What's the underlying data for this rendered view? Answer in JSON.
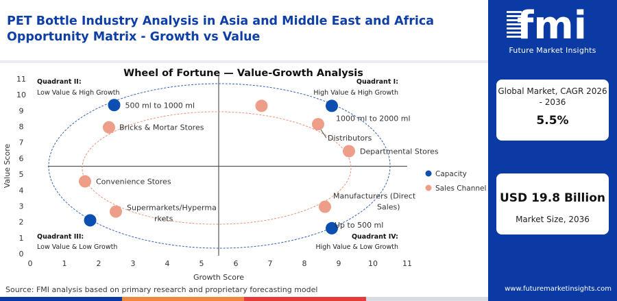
{
  "header": {
    "title": "PET Bottle Industry Analysis in Asia and Middle East and Africa Opportunity Matrix - Growth vs Value"
  },
  "source": "Source: FMI analysis based on primary research and proprietary forecasting model",
  "sidebar": {
    "logo_text": "fmi",
    "logo_sub": "Future Market Insights",
    "cagr_label": "Global Market, CAGR 2026 - 2036",
    "cagr_value": "5.5%",
    "size_value": "USD 19.8 Billion",
    "size_label": "Market Size, 2036",
    "site": "www.futuremarketinsights.com"
  },
  "colors": {
    "brand_blue": "#0b3aa4",
    "title_blue": "#0d3fa6",
    "capacity": "#0c4fb0",
    "sales_channel": "#ee9e88",
    "outer_ellipse": "#2f62b8",
    "inner_ellipse": "#e8927a",
    "bottom_bar": [
      "#0b3aa4",
      "#f0883e",
      "#e23c3c",
      "#d9dde3"
    ]
  },
  "chart_data": {
    "type": "scatter",
    "title": "Wheel of Fortune — Value-Growth Analysis",
    "xlabel": "Growth Score",
    "ylabel": "Value Score",
    "xlim": [
      0,
      11
    ],
    "ylim": [
      0,
      11
    ],
    "xticks": [
      0,
      1,
      2,
      3,
      4,
      5,
      6,
      7,
      8,
      9,
      10,
      11
    ],
    "yticks": [
      0,
      1,
      2,
      3,
      4,
      5,
      6,
      7,
      8,
      9,
      10,
      11
    ],
    "quadrant_dividers": {
      "x": 5.5,
      "y": 5.5
    },
    "quadrants": [
      {
        "title": "Quadrant II:",
        "subtitle": "Low Value & High Growth",
        "position": "top-left"
      },
      {
        "title": "Quadrant I:",
        "subtitle": "High Value & High Growth",
        "position": "top-right"
      },
      {
        "title": "Quadrant III:",
        "subtitle": "Low Value & Low Growth",
        "position": "bottom-left"
      },
      {
        "title": "Quadrant IV:",
        "subtitle": "High Value & Low Growth",
        "position": "bottom-right"
      }
    ],
    "series": [
      {
        "name": "Capacity",
        "points": [
          {
            "label": "500 ml to 1000 ml",
            "x": 2.45,
            "y": 9.35
          },
          {
            "label": "1000 ml to 2000 ml",
            "x": 8.8,
            "y": 9.3
          },
          {
            "label": "Up to 500 ml",
            "x": 8.8,
            "y": 1.6
          },
          {
            "label": "",
            "x": 1.75,
            "y": 2.1
          }
        ]
      },
      {
        "name": "Sales Channel",
        "points": [
          {
            "label": "Bricks & Mortar Stores",
            "x": 2.3,
            "y": 7.95
          },
          {
            "label": "",
            "x": 6.75,
            "y": 9.3
          },
          {
            "label": "Distributors",
            "x": 8.4,
            "y": 8.15
          },
          {
            "label": "Departmental Stores",
            "x": 9.3,
            "y": 6.45
          },
          {
            "label": "Convenience Stores",
            "x": 1.6,
            "y": 4.55
          },
          {
            "label": "Supermarkets/Hypermarkets",
            "x": 2.5,
            "y": 2.65
          },
          {
            "label": "Manufacturers (Direct Sales)",
            "x": 8.6,
            "y": 2.95
          }
        ]
      }
    ],
    "legend": {
      "position": "right",
      "entries": [
        "Capacity",
        "Sales Channel"
      ]
    }
  }
}
